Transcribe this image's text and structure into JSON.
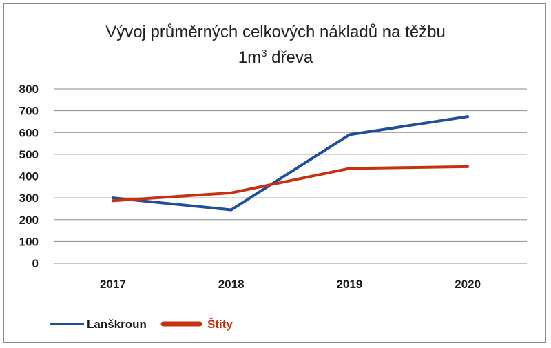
{
  "chart_data": {
    "type": "line",
    "title_line1": "Vývoj průměrných celkových nákladů na těžbu",
    "title_line2_pre": "1m",
    "title_line2_sup": "3",
    "title_line2_post": " dřeva",
    "categories": [
      "2017",
      "2018",
      "2019",
      "2020"
    ],
    "ylim": [
      0,
      800
    ],
    "yticks": [
      0,
      100,
      200,
      300,
      400,
      500,
      600,
      700,
      800
    ],
    "grid": true,
    "legend_position": "bottom-left",
    "series": [
      {
        "name": "Lanškroun",
        "values": [
          300,
          245,
          590,
          673
        ],
        "color": "#1f4e9b",
        "legend_text_color": "#1a1a1a"
      },
      {
        "name": "Štíty",
        "values": [
          287,
          323,
          435,
          443
        ],
        "color": "#c9300f",
        "legend_text_color": "#c9300f"
      }
    ]
  }
}
